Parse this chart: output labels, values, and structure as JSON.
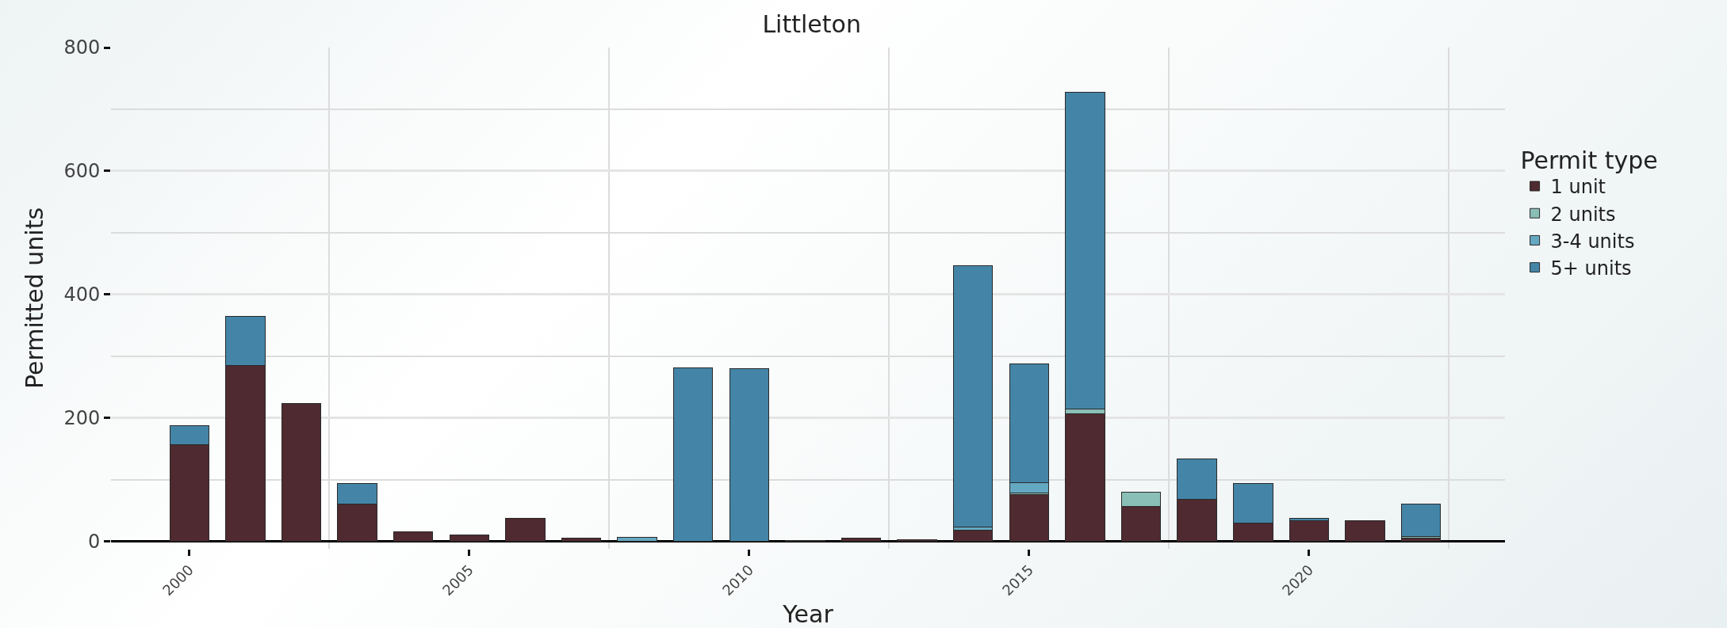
{
  "chart_data": {
    "type": "bar",
    "stacked": true,
    "title": "Littleton",
    "xlabel": "Year",
    "ylabel": "Permitted units",
    "legend_title": "Permit type",
    "x": [
      2000,
      2001,
      2002,
      2003,
      2004,
      2005,
      2006,
      2007,
      2008,
      2009,
      2010,
      2011,
      2012,
      2013,
      2014,
      2015,
      2016,
      2017,
      2018,
      2019,
      2020,
      2021,
      2022
    ],
    "series": [
      {
        "name": "1 unit",
        "color": "#4f2a30",
        "values": [
          157,
          285,
          223,
          60,
          16,
          11,
          38,
          5,
          null,
          null,
          null,
          1,
          5,
          3,
          18,
          76,
          207,
          56,
          68,
          30,
          34,
          33,
          5
        ]
      },
      {
        "name": "2 units",
        "color": "#8abfb7",
        "values": [
          null,
          null,
          null,
          null,
          null,
          null,
          null,
          null,
          null,
          null,
          null,
          null,
          null,
          null,
          null,
          3,
          8,
          24,
          null,
          null,
          null,
          null,
          3
        ]
      },
      {
        "name": "3-4 units",
        "color": "#65a8c1",
        "values": [
          null,
          null,
          null,
          null,
          null,
          null,
          null,
          null,
          7,
          null,
          null,
          null,
          null,
          null,
          5,
          16,
          null,
          null,
          null,
          null,
          null,
          null,
          null
        ]
      },
      {
        "name": "5+ units",
        "color": "#4485a7",
        "values": [
          30,
          80,
          null,
          34,
          null,
          null,
          null,
          null,
          null,
          281,
          280,
          null,
          null,
          null,
          423,
          193,
          512,
          null,
          65,
          64,
          4,
          null,
          53
        ]
      }
    ],
    "xlim": [
      1998.6,
      2023.5
    ],
    "xticks": [
      2000,
      2005,
      2010,
      2015,
      2020
    ],
    "ylim": [
      -12,
      800
    ],
    "yticks": [
      0,
      200,
      400,
      600,
      800
    ],
    "grid": true,
    "legend": "right"
  }
}
